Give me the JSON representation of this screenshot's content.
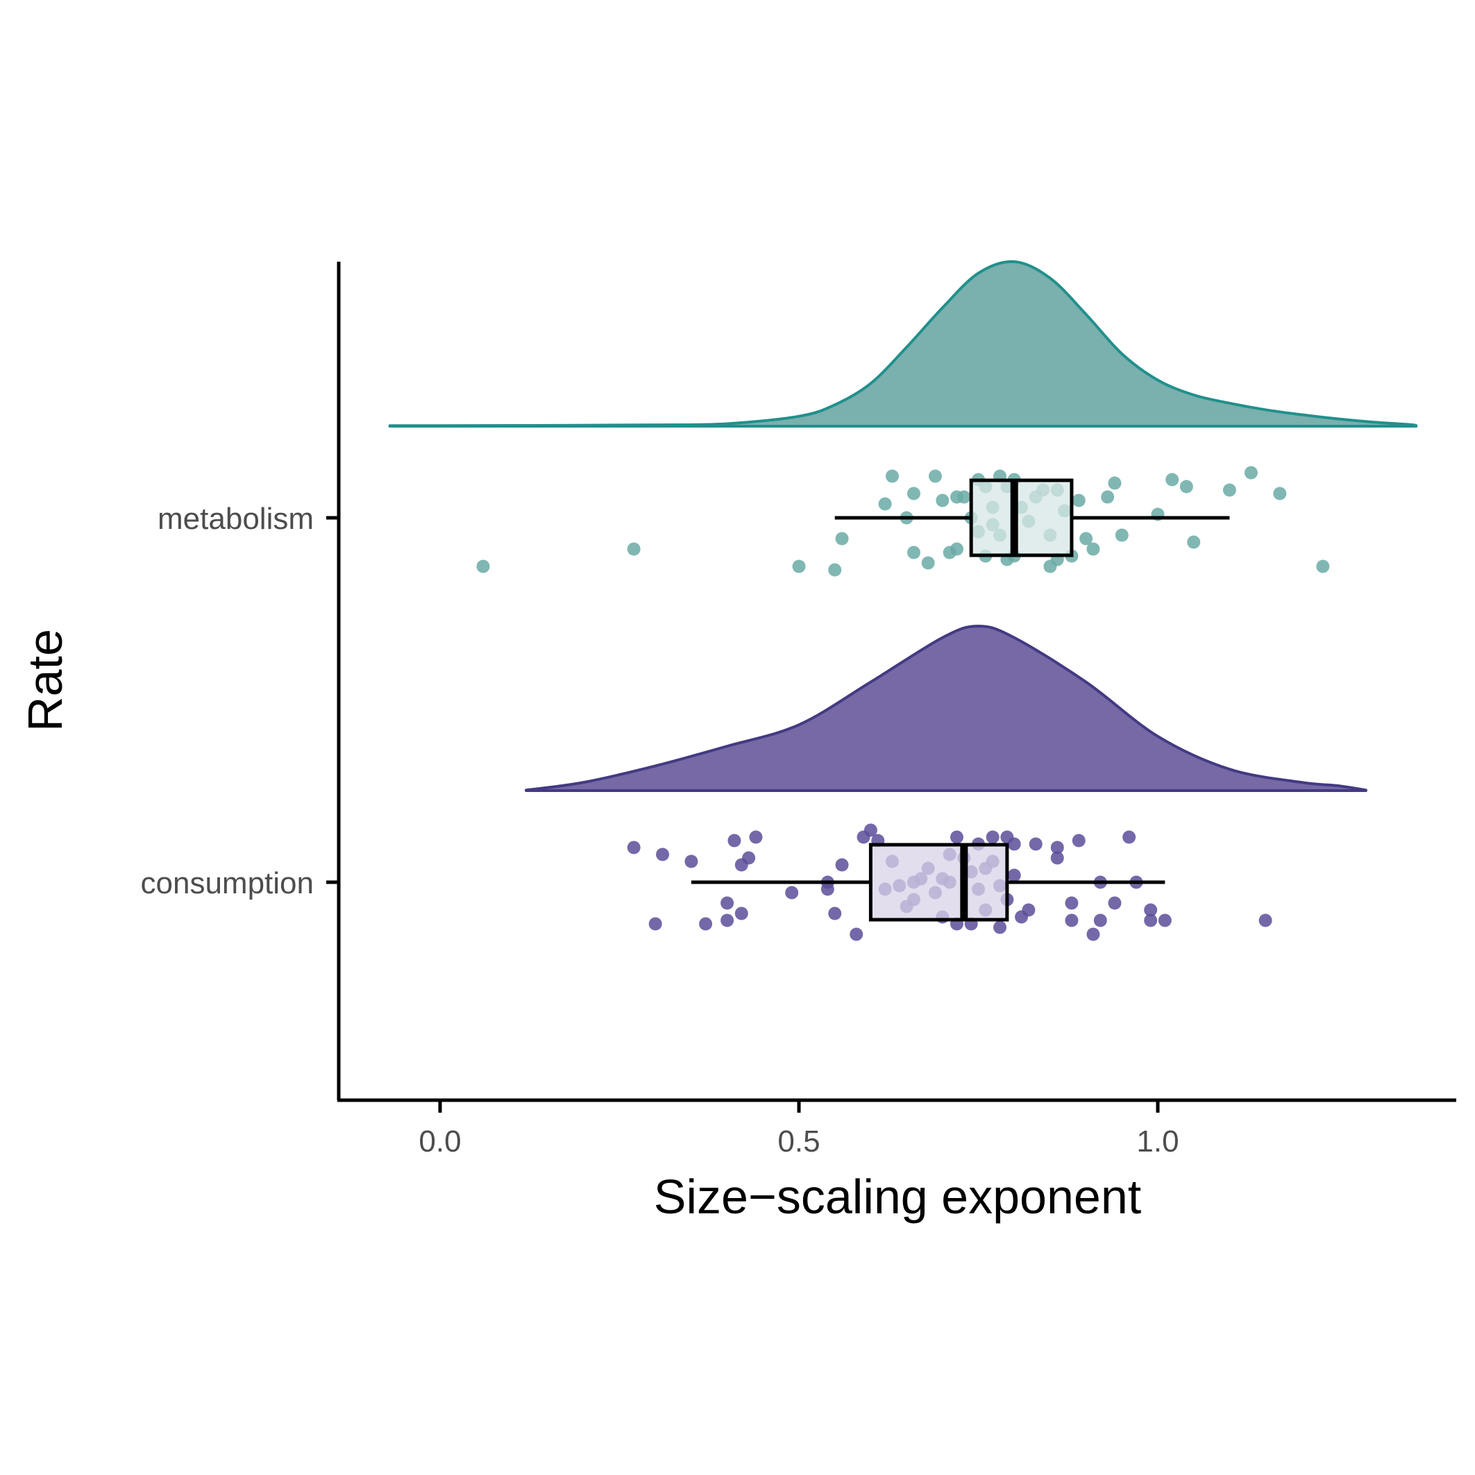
{
  "chart_data": {
    "type": "raincloud",
    "xlabel": "Size−scaling exponent",
    "ylabel": "Rate",
    "xlim": [
      -0.14,
      1.42
    ],
    "x_ticks": [
      0.0,
      0.5,
      1.0
    ],
    "x_tick_labels": [
      "0.0",
      "0.5",
      "1.0"
    ],
    "grid": false,
    "legend": "none",
    "categories": [
      "metabolism",
      "consumption"
    ],
    "series": [
      {
        "name": "metabolism",
        "fill": "#7ab0ad",
        "stroke": "#21908c",
        "point_color": "#6aaaa6",
        "box_fill": "#d7e7e6",
        "box": {
          "whisker_low": 0.55,
          "q1": 0.74,
          "median": 0.8,
          "q3": 0.88,
          "whisker_high": 1.1
        },
        "density": [
          [
            -0.07,
            0.003
          ],
          [
            0.1,
            0.004
          ],
          [
            0.3,
            0.008
          ],
          [
            0.4,
            0.015
          ],
          [
            0.5,
            0.06
          ],
          [
            0.55,
            0.13
          ],
          [
            0.6,
            0.26
          ],
          [
            0.65,
            0.48
          ],
          [
            0.7,
            0.72
          ],
          [
            0.75,
            0.93
          ],
          [
            0.8,
            1.0
          ],
          [
            0.85,
            0.9
          ],
          [
            0.9,
            0.68
          ],
          [
            0.95,
            0.44
          ],
          [
            1.0,
            0.28
          ],
          [
            1.05,
            0.19
          ],
          [
            1.1,
            0.14
          ],
          [
            1.15,
            0.1
          ],
          [
            1.2,
            0.07
          ],
          [
            1.25,
            0.045
          ],
          [
            1.3,
            0.025
          ],
          [
            1.35,
            0.01
          ],
          [
            1.36,
            0.004
          ]
        ],
        "points": [
          [
            0.06,
            -0.14
          ],
          [
            0.27,
            -0.09
          ],
          [
            0.5,
            -0.14
          ],
          [
            0.55,
            -0.15
          ],
          [
            0.56,
            -0.06
          ],
          [
            0.62,
            0.04
          ],
          [
            0.63,
            0.12
          ],
          [
            0.65,
            0.0
          ],
          [
            0.66,
            -0.1
          ],
          [
            0.66,
            0.07
          ],
          [
            0.68,
            -0.13
          ],
          [
            0.69,
            0.12
          ],
          [
            0.7,
            0.05
          ],
          [
            0.71,
            -0.1
          ],
          [
            0.72,
            0.06
          ],
          [
            0.72,
            -0.09
          ],
          [
            0.73,
            0.06
          ],
          [
            0.74,
            0.0
          ],
          [
            0.75,
            0.11
          ],
          [
            0.75,
            -0.04
          ],
          [
            0.76,
            -0.11
          ],
          [
            0.76,
            0.09
          ],
          [
            0.77,
            0.03
          ],
          [
            0.77,
            -0.02
          ],
          [
            0.78,
            0.12
          ],
          [
            0.78,
            -0.05
          ],
          [
            0.79,
            0.09
          ],
          [
            0.79,
            -0.12
          ],
          [
            0.8,
            0.11
          ],
          [
            0.8,
            -0.11
          ],
          [
            0.81,
            0.03
          ],
          [
            0.82,
            -0.01
          ],
          [
            0.83,
            0.06
          ],
          [
            0.84,
            0.08
          ],
          [
            0.85,
            -0.14
          ],
          [
            0.85,
            -0.05
          ],
          [
            0.86,
            -0.12
          ],
          [
            0.86,
            0.08
          ],
          [
            0.87,
            0.02
          ],
          [
            0.88,
            -0.11
          ],
          [
            0.89,
            0.05
          ],
          [
            0.9,
            -0.06
          ],
          [
            0.91,
            -0.09
          ],
          [
            0.93,
            0.06
          ],
          [
            0.94,
            0.1
          ],
          [
            0.95,
            -0.05
          ],
          [
            1.0,
            0.01
          ],
          [
            1.02,
            0.11
          ],
          [
            1.04,
            0.09
          ],
          [
            1.05,
            -0.07
          ],
          [
            1.1,
            0.08
          ],
          [
            1.13,
            0.13
          ],
          [
            1.17,
            0.07
          ],
          [
            1.23,
            -0.14
          ]
        ]
      },
      {
        "name": "consumption",
        "fill": "#7669a5",
        "stroke": "#433a83",
        "point_color": "#5c4d99",
        "box_fill": "#d8d3e8",
        "box": {
          "whisker_low": 0.35,
          "q1": 0.6,
          "median": 0.73,
          "q3": 0.79,
          "whisker_high": 1.01
        },
        "density": [
          [
            0.12,
            0.003
          ],
          [
            0.2,
            0.05
          ],
          [
            0.3,
            0.15
          ],
          [
            0.4,
            0.27
          ],
          [
            0.5,
            0.4
          ],
          [
            0.6,
            0.66
          ],
          [
            0.7,
            0.93
          ],
          [
            0.75,
            1.0
          ],
          [
            0.8,
            0.93
          ],
          [
            0.9,
            0.66
          ],
          [
            1.0,
            0.33
          ],
          [
            1.1,
            0.13
          ],
          [
            1.2,
            0.05
          ],
          [
            1.25,
            0.03
          ],
          [
            1.29,
            0.003
          ]
        ],
        "points": [
          [
            0.27,
            0.1
          ],
          [
            0.3,
            -0.12
          ],
          [
            0.31,
            0.08
          ],
          [
            0.35,
            0.06
          ],
          [
            0.37,
            -0.12
          ],
          [
            0.4,
            -0.06
          ],
          [
            0.4,
            -0.11
          ],
          [
            0.41,
            0.12
          ],
          [
            0.42,
            -0.09
          ],
          [
            0.42,
            0.05
          ],
          [
            0.43,
            0.07
          ],
          [
            0.44,
            0.13
          ],
          [
            0.49,
            -0.03
          ],
          [
            0.54,
            0.0
          ],
          [
            0.54,
            -0.02
          ],
          [
            0.55,
            -0.09
          ],
          [
            0.56,
            0.05
          ],
          [
            0.58,
            -0.15
          ],
          [
            0.59,
            0.13
          ],
          [
            0.6,
            0.15
          ],
          [
            0.61,
            0.12
          ],
          [
            0.62,
            -0.02
          ],
          [
            0.63,
            0.06
          ],
          [
            0.64,
            -0.01
          ],
          [
            0.65,
            -0.07
          ],
          [
            0.66,
            -0.05
          ],
          [
            0.66,
            0.0
          ],
          [
            0.67,
            0.01
          ],
          [
            0.68,
            0.04
          ],
          [
            0.69,
            -0.03
          ],
          [
            0.7,
            0.01
          ],
          [
            0.7,
            -0.1
          ],
          [
            0.71,
            0.08
          ],
          [
            0.71,
            0.0
          ],
          [
            0.72,
            -0.12
          ],
          [
            0.72,
            0.13
          ],
          [
            0.73,
            0.07
          ],
          [
            0.74,
            0.03
          ],
          [
            0.74,
            -0.12
          ],
          [
            0.75,
            -0.02
          ],
          [
            0.75,
            0.11
          ],
          [
            0.76,
            0.04
          ],
          [
            0.76,
            -0.08
          ],
          [
            0.77,
            0.06
          ],
          [
            0.77,
            0.13
          ],
          [
            0.78,
            -0.13
          ],
          [
            0.78,
            -0.01
          ],
          [
            0.79,
            0.13
          ],
          [
            0.79,
            -0.05
          ],
          [
            0.8,
            0.11
          ],
          [
            0.8,
            0.02
          ],
          [
            0.81,
            -0.1
          ],
          [
            0.82,
            -0.08
          ],
          [
            0.83,
            0.11
          ],
          [
            0.86,
            0.1
          ],
          [
            0.86,
            0.07
          ],
          [
            0.88,
            -0.06
          ],
          [
            0.88,
            -0.11
          ],
          [
            0.89,
            0.12
          ],
          [
            0.91,
            -0.15
          ],
          [
            0.92,
            0.0
          ],
          [
            0.92,
            -0.11
          ],
          [
            0.94,
            -0.06
          ],
          [
            0.96,
            0.13
          ],
          [
            0.97,
            0.0
          ],
          [
            0.99,
            -0.08
          ],
          [
            0.99,
            -0.11
          ],
          [
            1.01,
            -0.11
          ],
          [
            1.15,
            -0.11
          ]
        ]
      }
    ]
  }
}
